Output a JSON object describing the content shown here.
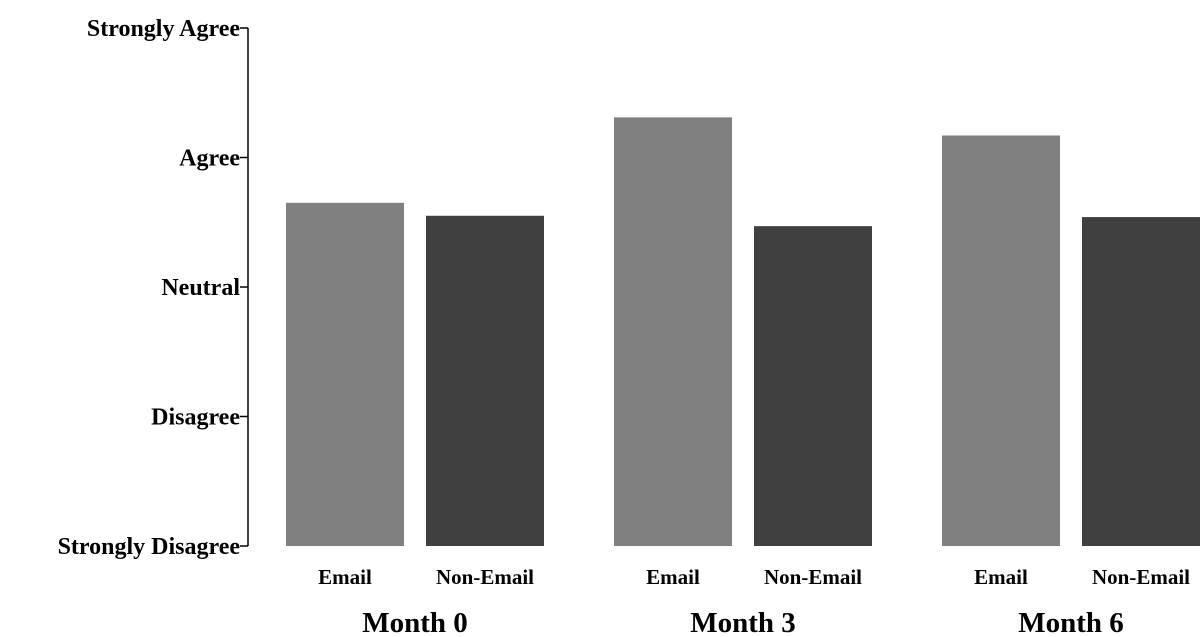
{
  "chart_data": {
    "type": "bar",
    "title": "",
    "xlabel": "",
    "ylabel": "",
    "y_tick_labels": [
      "Strongly Disagree",
      "Disagree",
      "Neutral",
      "Agree",
      "Strongly Agree"
    ],
    "y_tick_values": [
      1,
      2,
      3,
      4,
      5
    ],
    "ylim": [
      1,
      5
    ],
    "grid": false,
    "groups": [
      "Month 0",
      "Month 3",
      "Month 6"
    ],
    "categories": [
      "Email",
      "Non-Email"
    ],
    "series": [
      {
        "group": "Month 0",
        "values": [
          3.65,
          3.55
        ]
      },
      {
        "group": "Month 3",
        "values": [
          4.31,
          3.47
        ]
      },
      {
        "group": "Month 6",
        "values": [
          4.17,
          3.54
        ]
      }
    ],
    "colors": {
      "Email": "#808080",
      "Non-Email": "#404040",
      "axis": "#000000"
    }
  }
}
